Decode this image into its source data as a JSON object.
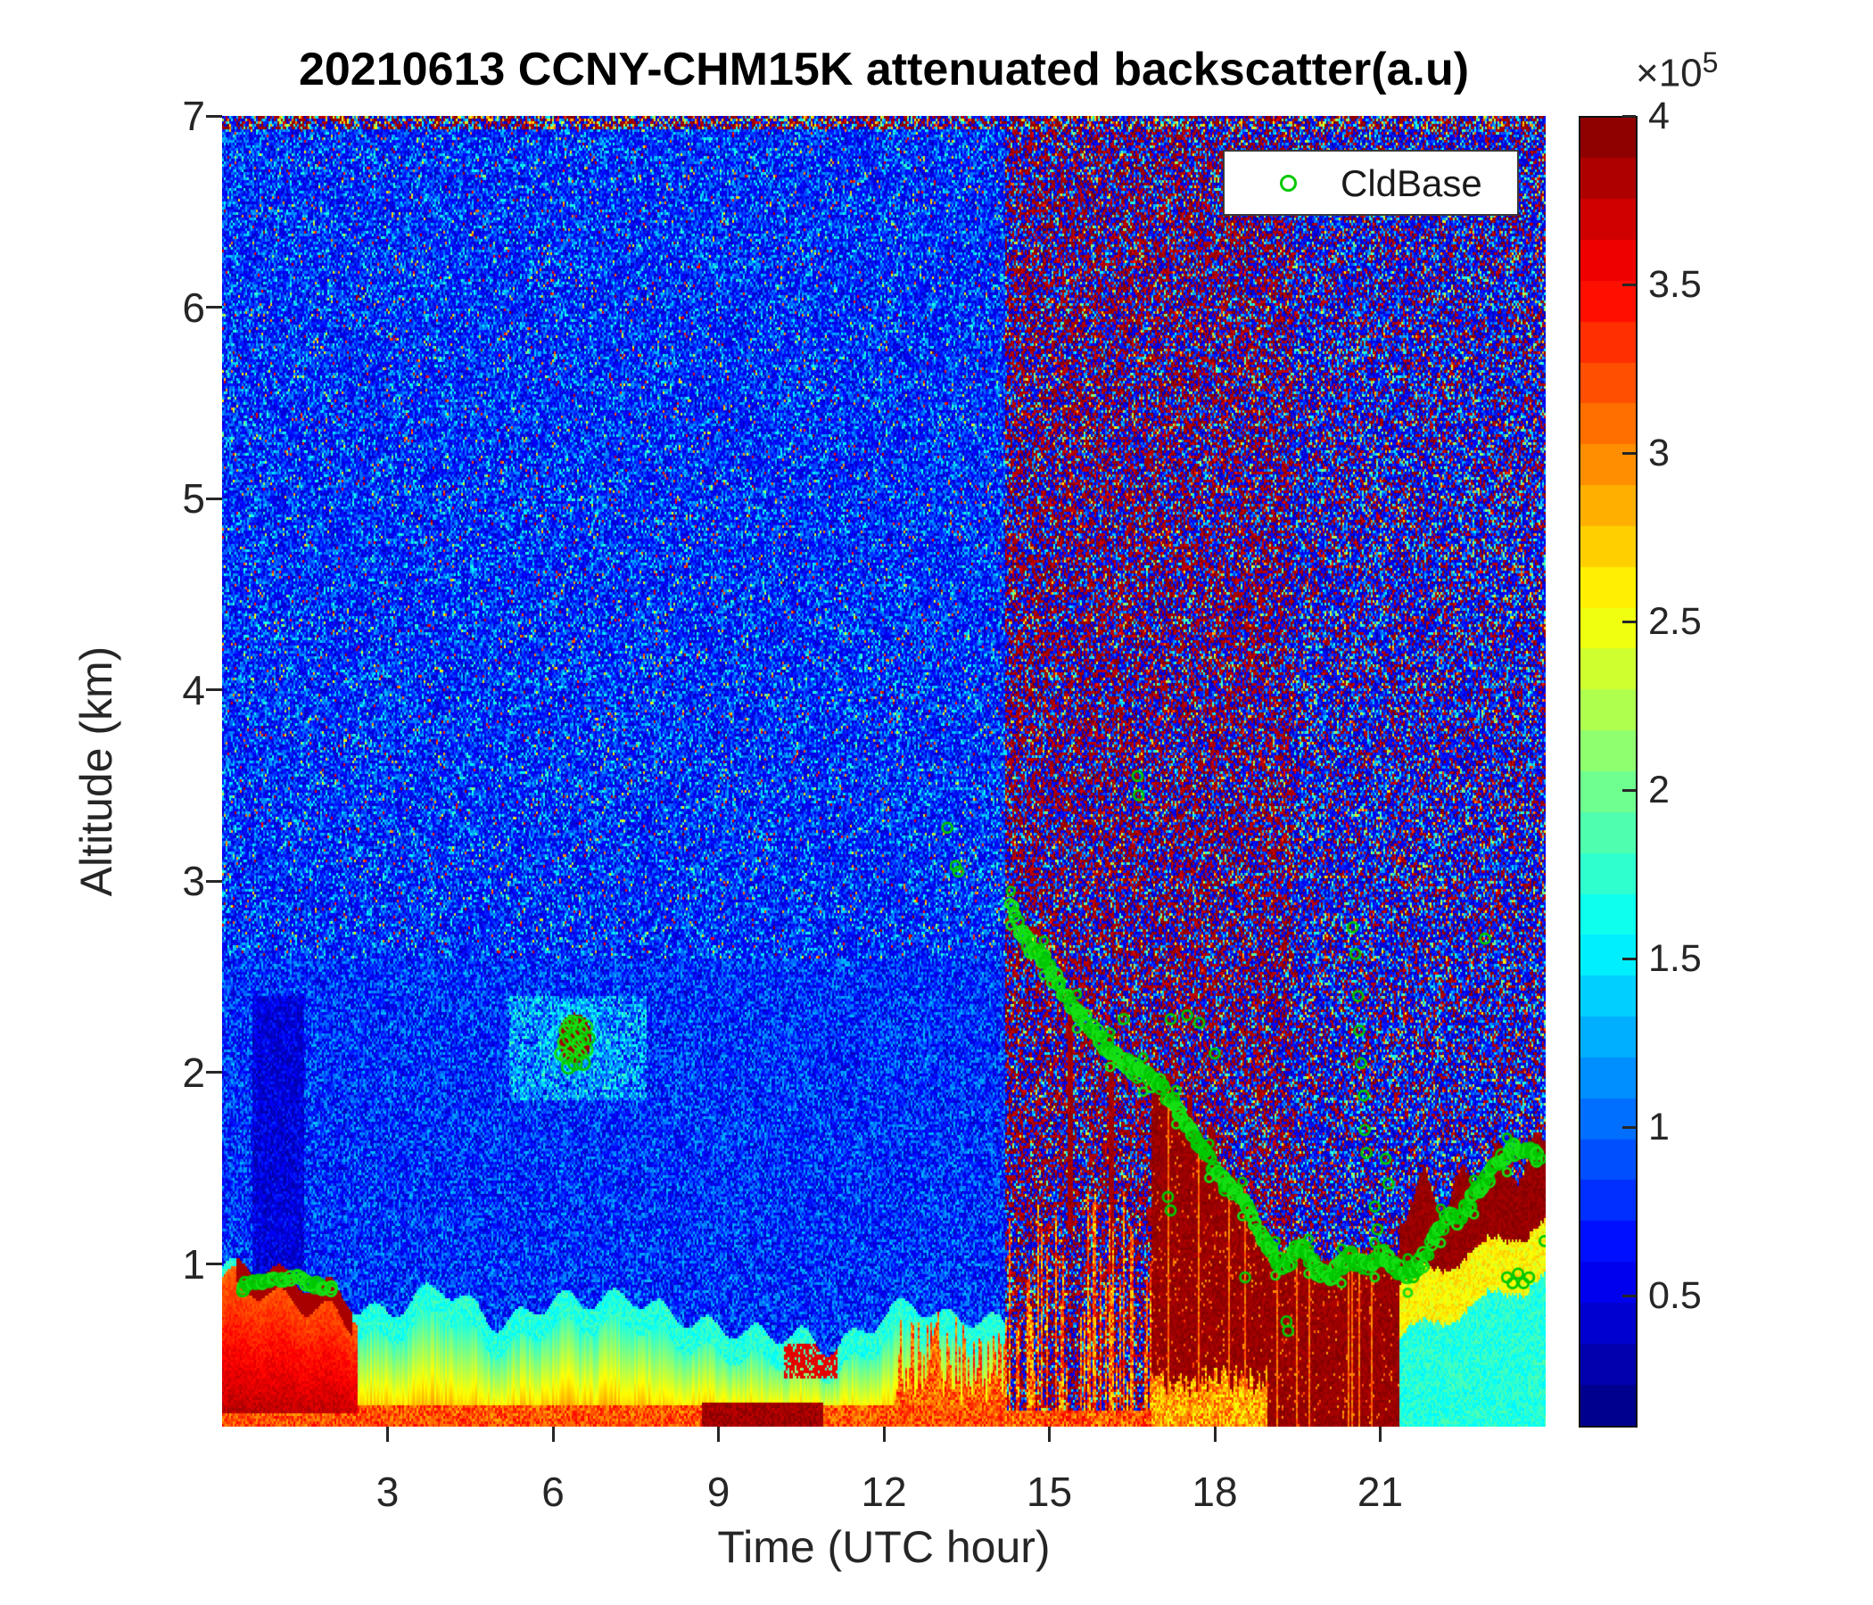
{
  "figure": {
    "title": "20210613 CCNY-CHM15K attenuated backscatter(a.u)",
    "background": "#ffffff"
  },
  "axes": {
    "xlabel": "Time (UTC hour)",
    "ylabel": "Altitude (km)",
    "x_ticks": [
      "3",
      "6",
      "9",
      "12",
      "15",
      "18",
      "21"
    ],
    "x_tick_values": [
      3,
      6,
      9,
      12,
      15,
      18,
      21
    ],
    "x_range": [
      0,
      24
    ],
    "y_ticks": [
      "1",
      "2",
      "3",
      "4",
      "5",
      "6",
      "7"
    ],
    "y_tick_values": [
      1,
      2,
      3,
      4,
      5,
      6,
      7
    ],
    "y_range": [
      0.15,
      7
    ],
    "tick_color": "#262626"
  },
  "colorbar": {
    "exponent_label": "×10",
    "exponent_sup": "5",
    "tick_labels": [
      "0.5",
      "1",
      "1.5",
      "2",
      "2.5",
      "3",
      "3.5",
      "4"
    ],
    "tick_values": [
      0.5,
      1,
      1.5,
      2,
      2.5,
      3,
      3.5,
      4
    ],
    "value_range": [
      0.12,
      4
    ],
    "colormap": "jet"
  },
  "legend": {
    "label": "CldBase",
    "marker": "green-open-circle",
    "marker_color": "#00c800"
  },
  "chart_data": {
    "type": "heatmap",
    "title": "20210613 CCNY-CHM15K attenuated backscatter(a.u)",
    "xlabel": "Time (UTC hour)",
    "ylabel": "Altitude (km)",
    "x_range_utc_hour": [
      0,
      24
    ],
    "x_ticks": [
      3,
      6,
      9,
      12,
      15,
      18,
      21
    ],
    "y_range_km": [
      0.15,
      7
    ],
    "y_ticks": [
      1,
      2,
      3,
      4,
      5,
      6,
      7
    ],
    "colorbar": {
      "scale": "x10^5",
      "ticks": [
        0.5,
        1,
        1.5,
        2,
        2.5,
        3,
        3.5,
        4
      ],
      "caxis": [
        12000,
        400000
      ],
      "colormap": "jet"
    },
    "legend": [
      "CldBase"
    ],
    "regions": [
      {
        "name": "clear-air-noise",
        "hours": [
          0,
          14.2
        ],
        "description": "royal-blue speckle noise, low backscatter, smoother deep blue below 2.5 km"
      },
      {
        "name": "daytime-high-noise",
        "hours": [
          14.2,
          24
        ],
        "description": "dense dark-red + navy speckle above cloud deck, red fraction higher before 19.4 UTC"
      },
      {
        "name": "aerosol-boundary-layer",
        "hours": [
          0,
          14.2
        ],
        "description": "cyan/green/yellow/orange layer below ~0.6-1.0 km, red plume 0-2.4 UTC, dark-red surface strip 8.7-10.9 UTC"
      },
      {
        "name": "precipitation-core",
        "hours": [
          16.85,
          21.35
        ],
        "description": "solid dark-red from cloud base to near surface"
      },
      {
        "name": "stratus-deck-evening",
        "hours": [
          21.35,
          24
        ],
        "description": "cyan below, yellow band, dark-red ridge under rising cloud base"
      },
      {
        "name": "small-cloud",
        "hours": [
          6.1,
          6.7
        ],
        "alt_km": [
          2.0,
          2.3
        ],
        "description": "small dark-red cloud return with cyan wisps"
      }
    ],
    "cldbase": {
      "units": {
        "x": "UTC hour",
        "y": "km"
      },
      "early": [
        [
          0.35,
          0.87
        ],
        [
          0.45,
          0.89
        ],
        [
          0.55,
          0.9
        ],
        [
          0.65,
          0.91
        ],
        [
          0.75,
          0.9
        ],
        [
          0.85,
          0.92
        ],
        [
          0.95,
          0.93
        ],
        [
          1.05,
          0.92
        ],
        [
          1.15,
          0.91
        ],
        [
          1.25,
          0.92
        ],
        [
          1.35,
          0.93
        ],
        [
          1.45,
          0.92
        ],
        [
          1.55,
          0.9
        ],
        [
          1.65,
          0.89
        ],
        [
          1.75,
          0.9
        ],
        [
          1.85,
          0.88
        ],
        [
          1.95,
          0.87
        ]
      ],
      "cluster": [
        [
          6.15,
          2.1
        ],
        [
          6.2,
          2.16
        ],
        [
          6.22,
          2.22
        ],
        [
          6.25,
          2.08
        ],
        [
          6.3,
          2.18
        ],
        [
          6.3,
          2.25
        ],
        [
          6.35,
          2.12
        ],
        [
          6.4,
          2.2
        ],
        [
          6.4,
          2.05
        ],
        [
          6.45,
          2.15
        ],
        [
          6.45,
          2.26
        ],
        [
          6.5,
          2.1
        ],
        [
          6.5,
          2.22
        ],
        [
          6.55,
          2.17
        ],
        [
          6.6,
          2.12
        ],
        [
          6.6,
          2.24
        ],
        [
          6.65,
          2.18
        ],
        [
          6.55,
          2.05
        ],
        [
          6.35,
          2.27
        ],
        [
          6.28,
          2.03
        ]
      ],
      "track": [
        [
          14.3,
          2.86
        ],
        [
          14.45,
          2.76
        ],
        [
          14.6,
          2.68
        ],
        [
          14.75,
          2.64
        ],
        [
          14.9,
          2.6
        ],
        [
          15.05,
          2.52
        ],
        [
          15.2,
          2.44
        ],
        [
          15.35,
          2.38
        ],
        [
          15.5,
          2.32
        ],
        [
          15.65,
          2.28
        ],
        [
          15.8,
          2.22
        ],
        [
          15.95,
          2.16
        ],
        [
          16.1,
          2.12
        ],
        [
          16.25,
          2.08
        ],
        [
          16.4,
          2.05
        ],
        [
          16.55,
          2.02
        ],
        [
          16.7,
          1.99
        ],
        [
          16.85,
          1.96
        ],
        [
          17.0,
          1.93
        ],
        [
          17.15,
          1.89
        ],
        [
          17.3,
          1.82
        ],
        [
          17.45,
          1.74
        ],
        [
          17.6,
          1.67
        ],
        [
          17.75,
          1.6
        ],
        [
          17.9,
          1.54
        ],
        [
          18.05,
          1.47
        ],
        [
          18.2,
          1.42
        ],
        [
          18.35,
          1.38
        ],
        [
          18.5,
          1.34
        ],
        [
          18.65,
          1.26
        ],
        [
          18.8,
          1.17
        ],
        [
          18.95,
          1.1
        ],
        [
          19.1,
          1.03
        ],
        [
          19.25,
          0.98
        ],
        [
          19.4,
          1.04
        ],
        [
          19.55,
          1.1
        ],
        [
          19.7,
          1.04
        ],
        [
          19.85,
          0.97
        ],
        [
          20.0,
          0.94
        ],
        [
          20.15,
          0.95
        ],
        [
          20.3,
          0.99
        ],
        [
          20.45,
          1.04
        ],
        [
          20.6,
          1.01
        ],
        [
          20.75,
          0.99
        ],
        [
          20.9,
          1.02
        ],
        [
          21.05,
          1.06
        ],
        [
          21.2,
          1.0
        ],
        [
          21.35,
          0.96
        ],
        [
          21.5,
          0.94
        ],
        [
          21.65,
          0.97
        ],
        [
          21.8,
          1.04
        ],
        [
          21.95,
          1.12
        ],
        [
          22.1,
          1.2
        ],
        [
          22.25,
          1.26
        ],
        [
          22.4,
          1.22
        ],
        [
          22.55,
          1.28
        ],
        [
          22.7,
          1.35
        ],
        [
          22.85,
          1.42
        ],
        [
          23.0,
          1.47
        ],
        [
          23.15,
          1.52
        ],
        [
          23.3,
          1.57
        ],
        [
          23.45,
          1.6
        ],
        [
          23.6,
          1.62
        ],
        [
          23.75,
          1.58
        ],
        [
          23.9,
          1.55
        ]
      ],
      "scattered": [
        [
          13.15,
          3.28
        ],
        [
          13.3,
          3.08
        ],
        [
          13.35,
          3.05
        ],
        [
          16.6,
          3.55
        ],
        [
          16.62,
          3.45
        ],
        [
          16.35,
          2.28
        ],
        [
          17.2,
          2.28
        ],
        [
          17.5,
          2.3
        ],
        [
          17.72,
          2.26
        ],
        [
          18.0,
          2.1
        ],
        [
          17.15,
          1.35
        ],
        [
          17.2,
          1.28
        ],
        [
          18.55,
          0.93
        ],
        [
          19.3,
          0.7
        ],
        [
          19.33,
          0.65
        ],
        [
          20.5,
          2.76
        ],
        [
          20.55,
          2.62
        ],
        [
          20.6,
          2.4
        ],
        [
          20.62,
          2.22
        ],
        [
          20.65,
          2.05
        ],
        [
          20.7,
          1.88
        ],
        [
          20.72,
          1.7
        ],
        [
          20.75,
          1.58
        ],
        [
          20.9,
          1.3
        ],
        [
          20.95,
          1.18
        ],
        [
          21.1,
          1.55
        ],
        [
          21.15,
          1.42
        ],
        [
          22.9,
          2.7
        ],
        [
          23.3,
          0.93
        ],
        [
          23.4,
          0.9
        ],
        [
          23.5,
          0.95
        ],
        [
          23.6,
          0.9
        ],
        [
          23.7,
          0.93
        ],
        [
          23.98,
          1.12
        ]
      ]
    },
    "render": {
      "noise_transition_hour": 14.2,
      "red_speckle_end_hour": 19.4,
      "boundary_layer_top_km": {
        "hour_step": 0.5,
        "values": [
          0.98,
          0.95,
          0.92,
          0.9,
          0.92,
          0.8,
          0.73,
          0.78,
          0.86,
          0.8,
          0.73,
          0.76,
          0.8,
          0.76,
          0.8,
          0.85,
          0.8,
          0.72,
          0.64,
          0.6,
          0.62,
          0.66,
          0.6,
          0.63,
          0.7,
          0.76,
          0.72,
          0.76,
          0.73,
          0.7
        ]
      },
      "virga_columns": [
        [
          15.38,
          1.15,
          2.3
        ],
        [
          16.12,
          0.95,
          2.2
        ],
        [
          17.15,
          0.35,
          2.0
        ],
        [
          17.55,
          1.15,
          1.85
        ],
        [
          17.95,
          0.3,
          1.7
        ],
        [
          18.35,
          0.85,
          1.4
        ],
        [
          19.0,
          0.5,
          1.05
        ]
      ],
      "precip_core_hours": [
        16.85,
        21.35
      ],
      "right_bands_start_hour": 21.35,
      "early_red_plume_hours": [
        0,
        2.45
      ],
      "surface_dark_red_hours": [
        8.7,
        10.9
      ],
      "small_cloud": {
        "hour": 6.4,
        "alt_km": 2.18
      }
    }
  }
}
